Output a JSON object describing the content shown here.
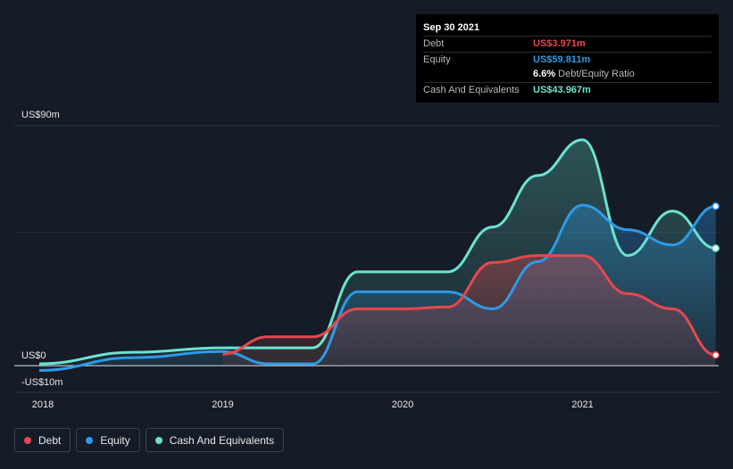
{
  "tooltip": {
    "date": "Sep 30 2021",
    "rows": [
      {
        "label": "Debt",
        "value": "US$3.971m",
        "color": "#e5484d"
      },
      {
        "label": "Equity",
        "value": "US$59.811m",
        "color": "#2e9ae6"
      },
      {
        "ratio_value": "6.6%",
        "ratio_label": "Debt/Equity Ratio"
      },
      {
        "label": "Cash And Equivalents",
        "value": "US$43.967m",
        "color": "#6be3d0"
      }
    ]
  },
  "legend": [
    {
      "label": "Debt",
      "color": "#e5484d"
    },
    {
      "label": "Equity",
      "color": "#2e9ae6"
    },
    {
      "label": "Cash And Equivalents",
      "color": "#6be3d0"
    }
  ],
  "chart_data": {
    "type": "area",
    "ylim": [
      -10,
      90
    ],
    "xlim": [
      2017.98,
      2021.74
    ],
    "yticks": [
      {
        "value": 90,
        "label": "US$90m"
      },
      {
        "value": 0,
        "label": "US$0"
      },
      {
        "value": -10,
        "label": "-US$10m"
      }
    ],
    "xticks": [
      {
        "value": 2018,
        "label": "2018"
      },
      {
        "value": 2019,
        "label": "2019"
      },
      {
        "value": 2020,
        "label": "2020"
      },
      {
        "value": 2021,
        "label": "2021"
      }
    ],
    "grid": true,
    "legend_position": "bottom-left",
    "series": [
      {
        "name": "Debt",
        "color": "#e5484d",
        "x": [
          2019.0,
          2019.25,
          2019.5,
          2019.75,
          2020.0,
          2020.25,
          2020.5,
          2020.75,
          2021.0,
          2021.25,
          2021.5,
          2021.74
        ],
        "y": [
          4.3,
          10.8,
          10.8,
          21.3,
          21.3,
          22.0,
          38.7,
          41.3,
          41.3,
          27.0,
          21.3,
          3.97
        ]
      },
      {
        "name": "Equity",
        "color": "#2e9ae6",
        "x": [
          2017.98,
          2018.5,
          2019.0,
          2019.25,
          2019.5,
          2019.75,
          2020.0,
          2020.25,
          2020.5,
          2020.75,
          2021.0,
          2021.25,
          2021.5,
          2021.74
        ],
        "y": [
          -1.8,
          3.0,
          5.3,
          0.7,
          0.7,
          27.7,
          27.7,
          27.7,
          21.3,
          39.0,
          60.2,
          51.0,
          45.3,
          59.8
        ]
      },
      {
        "name": "Cash And Equivalents",
        "color": "#6be3d0",
        "x": [
          2017.98,
          2018.5,
          2019.0,
          2019.5,
          2019.75,
          2020.0,
          2020.25,
          2020.5,
          2020.75,
          2021.0,
          2021.25,
          2021.5,
          2021.74
        ],
        "y": [
          0.7,
          5.0,
          6.7,
          6.7,
          35.2,
          35.2,
          35.2,
          52.0,
          71.3,
          84.7,
          41.3,
          58.0,
          44.0
        ]
      }
    ]
  }
}
